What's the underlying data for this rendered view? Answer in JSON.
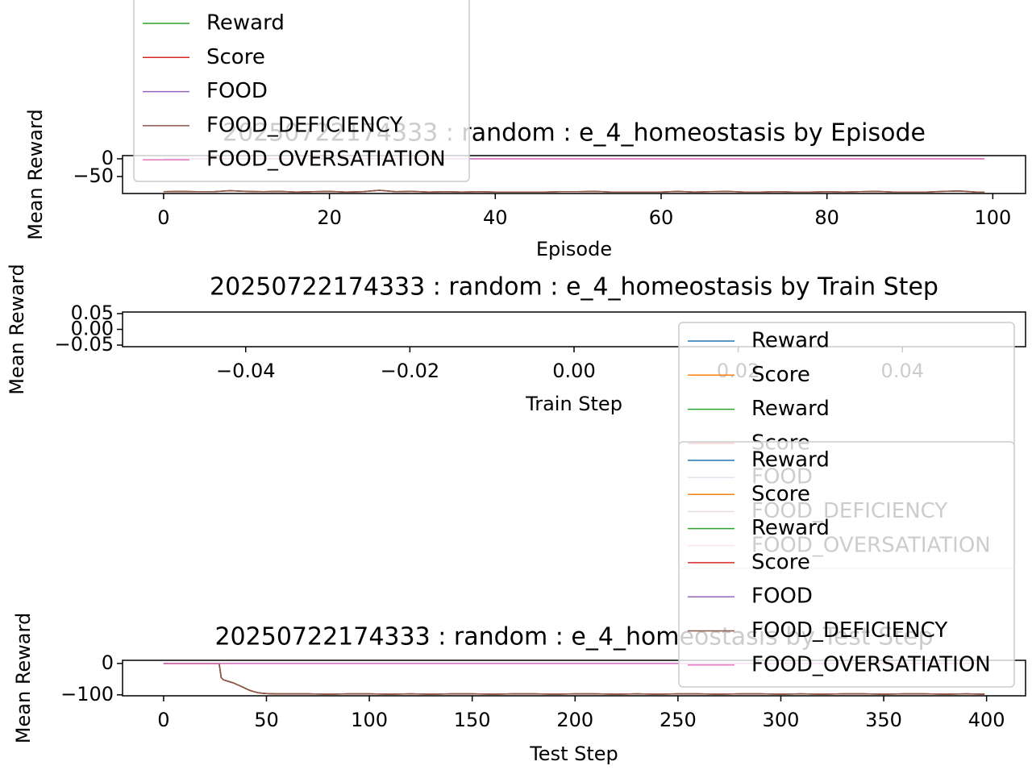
{
  "chart_data": [
    {
      "type": "line",
      "title": "20250722174333 : random : e_4_homeostasis by Episode",
      "xlabel": "Episode",
      "ylabel": "Mean Reward",
      "x": [
        0,
        2,
        4,
        6,
        8,
        10,
        12,
        14,
        16,
        18,
        20,
        22,
        24,
        26,
        28,
        30,
        32,
        34,
        36,
        38,
        40,
        42,
        44,
        46,
        48,
        50,
        52,
        54,
        56,
        58,
        60,
        62,
        64,
        66,
        68,
        70,
        72,
        74,
        76,
        78,
        80,
        82,
        84,
        86,
        88,
        90,
        92,
        94,
        96,
        98,
        99
      ],
      "xlim": [
        -4.95,
        103.95
      ],
      "xticks": [
        0,
        20,
        40,
        60,
        80,
        100
      ],
      "ylim": [
        -98,
        9
      ],
      "yticks": [
        {
          "value": -50,
          "label": "−50"
        },
        0
      ],
      "series": [
        {
          "name": "Reward",
          "color": "#2ca02c",
          "values": [
            -93,
            -92,
            -93,
            -93,
            -90,
            -92,
            -93,
            -92,
            -94,
            -93,
            -92,
            -94,
            -93,
            -89,
            -93,
            -92,
            -94,
            -93,
            -94,
            -93,
            -94,
            -94,
            -94,
            -94,
            -93,
            -93,
            -92,
            -94,
            -94,
            -94,
            -94,
            -92,
            -94,
            -93,
            -92,
            -94,
            -94,
            -93,
            -94,
            -94,
            -93,
            -94,
            -93,
            -92,
            -94,
            -94,
            -94,
            -92,
            -91,
            -94,
            -94
          ]
        },
        {
          "name": "Score",
          "color": "#d62728",
          "values": [
            -93,
            -92,
            -93,
            -93,
            -90,
            -92,
            -93,
            -92,
            -94,
            -93,
            -92,
            -94,
            -93,
            -89,
            -93,
            -92,
            -94,
            -93,
            -94,
            -93,
            -94,
            -94,
            -94,
            -94,
            -93,
            -93,
            -92,
            -94,
            -94,
            -94,
            -94,
            -92,
            -94,
            -93,
            -92,
            -94,
            -94,
            -93,
            -94,
            -94,
            -93,
            -94,
            -93,
            -92,
            -94,
            -94,
            -94,
            -92,
            -91,
            -94,
            -94
          ]
        },
        {
          "name": "FOOD",
          "color": "#9467bd",
          "values": [
            0,
            0,
            0,
            0,
            0,
            0,
            0,
            0,
            0,
            0,
            0,
            0,
            0,
            0,
            0,
            0,
            0,
            0,
            0,
            0,
            0,
            0,
            0,
            0,
            0,
            0,
            0,
            0,
            0,
            0,
            0,
            0,
            0,
            0,
            0,
            0,
            0,
            0,
            0,
            0,
            0,
            0,
            0,
            0,
            0,
            0,
            0,
            0,
            0,
            0,
            0
          ]
        },
        {
          "name": "FOOD_DEFICIENCY",
          "color": "#8c564b",
          "values": [
            -93,
            -92,
            -93,
            -93,
            -90,
            -92,
            -93,
            -92,
            -94,
            -93,
            -92,
            -94,
            -93,
            -89,
            -93,
            -92,
            -94,
            -93,
            -94,
            -93,
            -94,
            -94,
            -94,
            -94,
            -93,
            -93,
            -92,
            -94,
            -94,
            -94,
            -94,
            -92,
            -94,
            -93,
            -92,
            -94,
            -94,
            -93,
            -94,
            -94,
            -93,
            -94,
            -93,
            -92,
            -94,
            -94,
            -94,
            -92,
            -91,
            -94,
            -94
          ]
        },
        {
          "name": "FOOD_OVERSATIATION",
          "color": "#e377c2",
          "values": [
            0,
            0,
            0,
            0,
            0,
            0,
            0,
            0,
            0,
            0,
            0,
            0,
            0,
            0,
            0,
            0,
            0,
            0,
            0,
            0,
            0,
            0,
            0,
            0,
            0,
            0,
            0,
            0,
            0,
            0,
            0,
            0,
            0,
            0,
            0,
            0,
            0,
            0,
            0,
            0,
            0,
            0,
            0,
            0,
            0,
            0,
            0,
            0,
            0,
            0,
            0
          ]
        }
      ]
    },
    {
      "type": "line",
      "title": "20250722174333 : random : e_4_homeostasis by Train Step",
      "xlabel": "Train Step",
      "ylabel": "Mean Reward",
      "x": [],
      "xlim": [
        -0.055,
        0.055
      ],
      "xticks": [
        {
          "value": -0.04,
          "label": "−0.04"
        },
        {
          "value": -0.02,
          "label": "−0.02"
        },
        {
          "value": 0,
          "label": "0.00"
        },
        {
          "value": 0.02,
          "label": "0.02"
        },
        {
          "value": 0.04,
          "label": "0.04"
        }
      ],
      "ylim": [
        -0.055,
        0.055
      ],
      "yticks": [
        {
          "value": -0.05,
          "label": "−0.05"
        },
        {
          "value": 0,
          "label": "0.00"
        },
        {
          "value": 0.05,
          "label": "0.05"
        }
      ],
      "series": [
        {
          "name": "Reward",
          "color": "#1f77b4",
          "values": []
        },
        {
          "name": "Score",
          "color": "#ff7f0e",
          "values": []
        },
        {
          "name": "Reward",
          "color": "#2ca02c",
          "values": []
        },
        {
          "name": "Score",
          "color": "#d62728",
          "values": []
        },
        {
          "name": "FOOD",
          "color": "#9467bd",
          "values": []
        },
        {
          "name": "FOOD_DEFICIENCY",
          "color": "#8c564b",
          "values": []
        },
        {
          "name": "FOOD_OVERSATIATION",
          "color": "#e377c2",
          "values": []
        }
      ]
    },
    {
      "type": "line",
      "title": "20250722174333 : random : e_4_homeostasis by Test Step",
      "xlabel": "Test Step",
      "ylabel": "Mean Reward",
      "x": [
        0,
        5,
        10,
        15,
        20,
        25,
        27,
        28,
        29,
        30,
        32,
        34,
        36,
        38,
        40,
        42,
        44,
        46,
        48,
        50,
        55,
        60,
        70,
        80,
        90,
        100,
        110,
        120,
        130,
        140,
        150,
        160,
        170,
        180,
        190,
        200,
        210,
        220,
        230,
        240,
        250,
        260,
        270,
        280,
        290,
        300,
        310,
        320,
        330,
        340,
        350,
        360,
        370,
        380,
        390,
        399
      ],
      "xlim": [
        -19.95,
        418.95
      ],
      "xticks": [
        0,
        50,
        100,
        150,
        200,
        250,
        300,
        350,
        400
      ],
      "ylim": [
        -103,
        10
      ],
      "yticks": [
        {
          "value": -100,
          "label": "−100"
        },
        0
      ],
      "series": [
        {
          "name": "Reward",
          "color": "#1f77b4",
          "values": [
            0,
            0,
            0,
            0,
            0,
            0,
            0,
            -45,
            -52,
            -54,
            -58,
            -62,
            -68,
            -74,
            -80,
            -86,
            -90,
            -93,
            -95,
            -96,
            -97,
            -97,
            -97,
            -98,
            -97,
            -97,
            -98,
            -97,
            -98,
            -97,
            -97,
            -98,
            -97,
            -97,
            -98,
            -97,
            -97,
            -98,
            -97,
            -98,
            -97,
            -97,
            -98,
            -97,
            -97,
            -98,
            -97,
            -98,
            -97,
            -97,
            -98,
            -97,
            -97,
            -98,
            -97,
            -98
          ]
        },
        {
          "name": "Score",
          "color": "#ff7f0e",
          "values": [
            0,
            0,
            0,
            0,
            0,
            0,
            0,
            -45,
            -52,
            -54,
            -58,
            -62,
            -68,
            -74,
            -80,
            -86,
            -90,
            -93,
            -95,
            -96,
            -97,
            -97,
            -97,
            -98,
            -97,
            -97,
            -98,
            -97,
            -98,
            -97,
            -97,
            -98,
            -97,
            -97,
            -98,
            -97,
            -97,
            -98,
            -97,
            -98,
            -97,
            -97,
            -98,
            -97,
            -97,
            -98,
            -97,
            -98,
            -97,
            -97,
            -98,
            -97,
            -97,
            -98,
            -97,
            -98
          ]
        },
        {
          "name": "Reward",
          "color": "#2ca02c",
          "values": [
            0,
            0,
            0,
            0,
            0,
            0,
            0,
            -45,
            -52,
            -54,
            -58,
            -62,
            -68,
            -74,
            -80,
            -86,
            -90,
            -93,
            -95,
            -96,
            -97,
            -97,
            -97,
            -98,
            -97,
            -97,
            -98,
            -97,
            -98,
            -97,
            -97,
            -98,
            -97,
            -97,
            -98,
            -97,
            -97,
            -98,
            -97,
            -98,
            -97,
            -97,
            -98,
            -97,
            -97,
            -98,
            -97,
            -98,
            -97,
            -97,
            -98,
            -97,
            -97,
            -98,
            -97,
            -98
          ]
        },
        {
          "name": "Score",
          "color": "#d62728",
          "values": [
            0,
            0,
            0,
            0,
            0,
            0,
            0,
            -45,
            -52,
            -54,
            -58,
            -62,
            -68,
            -74,
            -80,
            -86,
            -90,
            -93,
            -95,
            -96,
            -97,
            -97,
            -97,
            -98,
            -97,
            -97,
            -98,
            -97,
            -98,
            -97,
            -97,
            -98,
            -97,
            -97,
            -98,
            -97,
            -97,
            -98,
            -97,
            -98,
            -97,
            -97,
            -98,
            -97,
            -97,
            -98,
            -97,
            -98,
            -97,
            -97,
            -98,
            -97,
            -97,
            -98,
            -97,
            -98
          ]
        },
        {
          "name": "FOOD",
          "color": "#9467bd",
          "values": [
            0,
            0,
            0,
            0,
            0,
            0,
            0,
            0,
            0,
            0,
            0,
            0,
            0,
            0,
            0,
            0,
            0,
            0,
            0,
            0,
            0,
            0,
            0,
            0,
            0,
            0,
            0,
            0,
            0,
            0,
            0,
            0,
            0,
            0,
            0,
            0,
            0,
            0,
            0,
            0,
            0,
            0,
            0,
            0,
            0,
            0,
            0,
            0,
            0,
            0,
            0,
            0,
            0,
            0,
            0,
            0
          ]
        },
        {
          "name": "FOOD_DEFICIENCY",
          "color": "#8c564b",
          "values": [
            0,
            0,
            0,
            0,
            0,
            0,
            0,
            -45,
            -52,
            -54,
            -58,
            -62,
            -68,
            -74,
            -80,
            -86,
            -90,
            -93,
            -95,
            -96,
            -97,
            -97,
            -97,
            -98,
            -97,
            -97,
            -98,
            -97,
            -98,
            -97,
            -97,
            -98,
            -97,
            -97,
            -98,
            -97,
            -97,
            -98,
            -97,
            -98,
            -97,
            -97,
            -98,
            -97,
            -97,
            -98,
            -97,
            -98,
            -97,
            -97,
            -98,
            -97,
            -97,
            -98,
            -97,
            -98
          ]
        },
        {
          "name": "FOOD_OVERSATIATION",
          "color": "#e377c2",
          "values": [
            0,
            0,
            0,
            0,
            0,
            0,
            0,
            0,
            0,
            0,
            0,
            0,
            0,
            0,
            0,
            0,
            0,
            0,
            0,
            0,
            0,
            0,
            0,
            0,
            0,
            0,
            0,
            0,
            0,
            0,
            0,
            0,
            0,
            0,
            0,
            0,
            0,
            0,
            0,
            0,
            0,
            0,
            0,
            0,
            0,
            0,
            0,
            0,
            0,
            0,
            0,
            0,
            0,
            0,
            0,
            0
          ]
        }
      ]
    }
  ]
}
